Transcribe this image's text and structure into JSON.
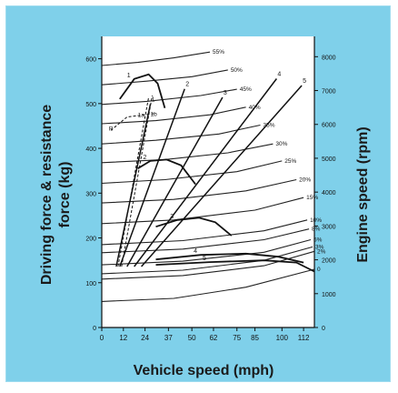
{
  "chart_data": {
    "type": "line",
    "title": "",
    "xlabel": "Vehicle speed (mph)",
    "ylabel_left": "Driving force & resistance force (kg)",
    "ylabel_right": "Engine speed (rpm)",
    "xlim": [
      0,
      118
    ],
    "ylim_left": [
      0,
      650
    ],
    "ylim_right": [
      0,
      8600
    ],
    "x_ticks": [
      "0",
      "12",
      "24",
      "37",
      "50",
      "62",
      "75",
      "85",
      "100",
      "112"
    ],
    "y_left_ticks": [
      "0",
      "100",
      "200",
      "300",
      "400",
      "500",
      "600"
    ],
    "y_right_ticks": [
      "0",
      "1000",
      "2000",
      "3000",
      "4000",
      "5000",
      "6000",
      "7000",
      "8000"
    ],
    "gradient_curves": [
      {
        "label": "55%",
        "x": [
          0,
          20,
          40,
          60
        ],
        "y": [
          585,
          592,
          602,
          615
        ]
      },
      {
        "label": "50%",
        "x": [
          0,
          25,
          50,
          70
        ],
        "y": [
          542,
          550,
          560,
          575
        ]
      },
      {
        "label": "45%",
        "x": [
          0,
          25,
          55,
          75
        ],
        "y": [
          498,
          505,
          518,
          532
        ]
      },
      {
        "label": "40%",
        "x": [
          0,
          30,
          60,
          80
        ],
        "y": [
          455,
          462,
          475,
          492
        ]
      },
      {
        "label": "35%",
        "x": [
          0,
          30,
          65,
          88
        ],
        "y": [
          410,
          418,
          432,
          452
        ]
      },
      {
        "label": "30%",
        "x": [
          0,
          35,
          70,
          95
        ],
        "y": [
          368,
          375,
          390,
          410
        ]
      },
      {
        "label": "25%",
        "x": [
          0,
          35,
          75,
          100
        ],
        "y": [
          322,
          330,
          348,
          372
        ]
      },
      {
        "label": "20%",
        "x": [
          0,
          40,
          80,
          108
        ],
        "y": [
          278,
          286,
          305,
          330
        ]
      },
      {
        "label": "15%",
        "x": [
          0,
          40,
          85,
          112
        ],
        "y": [
          232,
          240,
          262,
          290
        ]
      },
      {
        "label": "10%",
        "x": [
          0,
          45,
          90,
          114
        ],
        "y": [
          185,
          194,
          216,
          240
        ]
      },
      {
        "label": "8%",
        "x": [
          0,
          45,
          90,
          115
        ],
        "y": [
          167,
          175,
          196,
          220
        ]
      },
      {
        "label": "5%",
        "x": [
          0,
          45,
          90,
          116
        ],
        "y": [
          140,
          148,
          168,
          196
        ]
      },
      {
        "label": "3%",
        "x": [
          0,
          45,
          90,
          117
        ],
        "y": [
          120,
          128,
          150,
          180
        ]
      },
      {
        "label": "2%",
        "x": [
          0,
          45,
          90,
          118
        ],
        "y": [
          108,
          116,
          138,
          170
        ]
      },
      {
        "label": "0",
        "x": [
          0,
          40,
          80,
          118
        ],
        "y": [
          58,
          65,
          90,
          130
        ]
      }
    ],
    "driving_force_curves": [
      {
        "gear": "1",
        "x": [
          10,
          18,
          26,
          31,
          35
        ],
        "y": [
          510,
          555,
          565,
          545,
          490
        ]
      },
      {
        "gear": "2",
        "x": [
          20,
          27,
          36,
          44,
          52
        ],
        "y": [
          355,
          372,
          375,
          362,
          320
        ]
      },
      {
        "gear": "3",
        "x": [
          30,
          42,
          54,
          63,
          72
        ],
        "y": [
          225,
          240,
          245,
          235,
          205
        ]
      },
      {
        "gear": "4",
        "x": [
          30,
          55,
          80,
          98,
          112
        ],
        "y": [
          152,
          162,
          165,
          158,
          145
        ]
      },
      {
        "gear": "5",
        "x": [
          30,
          60,
          90,
          108,
          118
        ],
        "y": [
          140,
          146,
          150,
          145,
          125
        ]
      }
    ],
    "engine_speed_lines": [
      {
        "label": "1",
        "x": [
          8,
          27
        ],
        "y": [
          1800,
          6600
        ]
      },
      {
        "label": "2",
        "x": [
          10,
          46
        ],
        "y": [
          1800,
          7050
        ]
      },
      {
        "label": "3",
        "x": [
          14,
          67
        ],
        "y": [
          1800,
          6800
        ]
      },
      {
        "label": "4",
        "x": [
          18,
          97
        ],
        "y": [
          1800,
          7350
        ]
      },
      {
        "label": "5",
        "x": [
          22,
          111
        ],
        "y": [
          1800,
          7150
        ]
      }
    ],
    "annotations": [
      "1a",
      "1b",
      "R"
    ]
  }
}
